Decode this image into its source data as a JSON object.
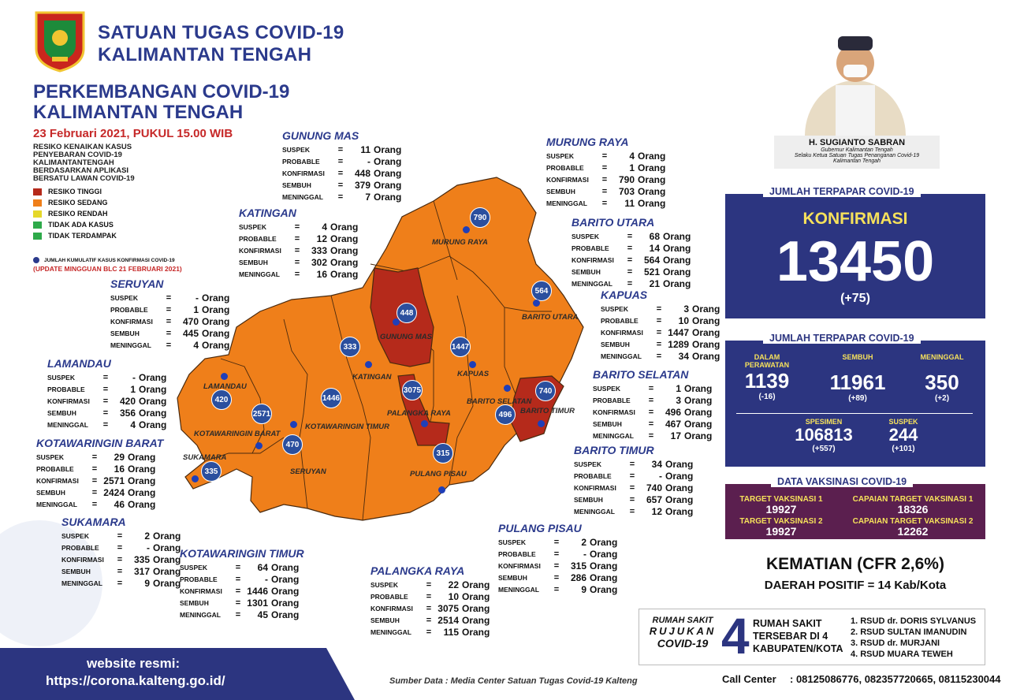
{
  "header": {
    "org_line1": "SATUAN TUGAS COVID-19",
    "org_line2": "KALIMANTAN TENGAH",
    "title_line1": "PERKEMBANGAN COVID-19",
    "title_line2": "KALIMANTAN TENGAH",
    "date": "23 Februari 2021, PUKUL 15.00 WIB"
  },
  "legend": {
    "heading": [
      "RESIKO KENAIKAN KASUS",
      "PENYEBARAN COVID-19",
      "KALIMANTANTENGAH",
      "BERDASARKAN APLIKASI",
      "BERSATU LAWAN COVID-19"
    ],
    "items": [
      {
        "label": "RESIKO TINGGI",
        "color": "#b52a1b"
      },
      {
        "label": "RESIKO SEDANG",
        "color": "#ef7f1a"
      },
      {
        "label": "RESIKO RENDAH",
        "color": "#e5d82a"
      },
      {
        "label": "TIDAK ADA KASUS",
        "color": "#2eaa4a"
      },
      {
        "label": "TIDAK TERDAMPAK",
        "color": "#2eaa4a"
      }
    ],
    "dot_note": "JUMLAH KUMULATIF KASUS KONFIRMASI COVID-19",
    "update_note": "(UPDATE MINGGUAN BLC 21 FEBRUARI 2021)"
  },
  "labels": {
    "suspek": "SUSPEK",
    "probable": "PROBABLE",
    "konfirmasi": "KONFIRMASI",
    "sembuh": "SEMBUH",
    "meninggal": "MENINGGAL",
    "eq": "=",
    "unit": "Orang"
  },
  "regions": [
    {
      "name": "GUNUNG MAS",
      "suspek": "11",
      "probable": "-",
      "konfirmasi": "448",
      "sembuh": "379",
      "meninggal": "7"
    },
    {
      "name": "MURUNG RAYA",
      "suspek": "4",
      "probable": "1",
      "konfirmasi": "790",
      "sembuh": "703",
      "meninggal": "11"
    },
    {
      "name": "KATINGAN",
      "suspek": "4",
      "probable": "12",
      "konfirmasi": "333",
      "sembuh": "302",
      "meninggal": "16"
    },
    {
      "name": "BARITO UTARA",
      "suspek": "68",
      "probable": "14",
      "konfirmasi": "564",
      "sembuh": "521",
      "meninggal": "21"
    },
    {
      "name": "SERUYAN",
      "suspek": "-",
      "probable": "1",
      "konfirmasi": "470",
      "sembuh": "445",
      "meninggal": "4"
    },
    {
      "name": "KAPUAS",
      "suspek": "3",
      "probable": "10",
      "konfirmasi": "1447",
      "sembuh": "1289",
      "meninggal": "34"
    },
    {
      "name": "LAMANDAU",
      "suspek": "-",
      "probable": "1",
      "konfirmasi": "420",
      "sembuh": "356",
      "meninggal": "4"
    },
    {
      "name": "BARITO SELATAN",
      "suspek": "1",
      "probable": "3",
      "konfirmasi": "496",
      "sembuh": "467",
      "meninggal": "17"
    },
    {
      "name": "KOTAWARINGIN BARAT",
      "suspek": "29",
      "probable": "16",
      "konfirmasi": "2571",
      "sembuh": "2424",
      "meninggal": "46"
    },
    {
      "name": "BARITO TIMUR",
      "suspek": "34",
      "probable": "-",
      "konfirmasi": "740",
      "sembuh": "657",
      "meninggal": "12"
    },
    {
      "name": "SUKAMARA",
      "suspek": "2",
      "probable": "-",
      "konfirmasi": "335",
      "sembuh": "317",
      "meninggal": "9"
    },
    {
      "name": "PULANG PISAU",
      "suspek": "2",
      "probable": "-",
      "konfirmasi": "315",
      "sembuh": "286",
      "meninggal": "9"
    },
    {
      "name": "KOTAWARINGIN TIMUR",
      "suspek": "64",
      "probable": "-",
      "konfirmasi": "1446",
      "sembuh": "1301",
      "meninggal": "45"
    },
    {
      "name": "PALANGKA RAYA",
      "suspek": "22",
      "probable": "10",
      "konfirmasi": "3075",
      "sembuh": "2514",
      "meninggal": "115"
    }
  ],
  "map_labels": [
    "MURUNG RAYA",
    "BARITO UTARA",
    "GUNUNG MAS",
    "KAPUAS",
    "KATINGAN",
    "LAMANDAU",
    "KOTAWARINGIN BARAT",
    "KOTAWARINGIN TIMUR",
    "PALANGKA RAYA",
    "BARITO SELATAN",
    "BARITO TIMUR",
    "SUKAMARA",
    "SERUYAN",
    "PULANG PISAU"
  ],
  "governor": {
    "name": "H. SUGIANTO SABRAN",
    "role1": "Gubernur Kalimantan Tengah",
    "role2": "Selaku Ketua Satuan Tugas Penanganan Covid-19",
    "role3": "Kalimantan Tengah"
  },
  "confirmed": {
    "title": "JUMLAH TERPAPAR COVID-19",
    "label": "KONFIRMASI",
    "value": "13450",
    "delta": "(+75)"
  },
  "exposure": {
    "title": "JUMLAH TERPAPAR COVID-19",
    "perawatan_label": "DALAM PERAWATAN",
    "perawatan": "1139",
    "perawatan_delta": "(-16)",
    "sembuh_label": "SEMBUH",
    "sembuh": "11961",
    "sembuh_delta": "(+89)",
    "meninggal_label": "MENINGGAL",
    "meninggal": "350",
    "meninggal_delta": "(+2)",
    "spesimen_label": "SPESIMEN",
    "spesimen": "106813",
    "spesimen_delta": "(+557)",
    "suspek_label": "SUSPEK",
    "suspek": "244",
    "suspek_delta": "(+101)"
  },
  "vaccine": {
    "title": "DATA VAKSINASI COVID-19",
    "t1_label": "TARGET VAKSINASI 1",
    "t1": "19927",
    "c1_label": "CAPAIAN TARGET VAKSINASI 1",
    "c1": "18326",
    "t2_label": "TARGET VAKSINASI 2",
    "t2": "19927",
    "c2_label": "CAPAIAN TARGET VAKSINASI 2",
    "c2": "12262"
  },
  "mortality": {
    "cfr": "KEMATIAN (CFR 2,6%)",
    "positive": "DAERAH POSITIF = 14 Kab/Kota"
  },
  "hospital": {
    "left1": "RUMAH SAKIT",
    "left2": "RUJUKAN",
    "left3": "COVID-19",
    "count": "4",
    "mid1": "RUMAH SAKIT",
    "mid2": "TERSEBAR DI 4",
    "mid3": "KABUPATEN/KOTA",
    "list": [
      "1. RSUD dr. DORIS SYLVANUS",
      "2. RSUD SULTAN IMANUDIN",
      "3. RSUD dr. MURJANI",
      "4. RSUD MUARA TEWEH"
    ]
  },
  "call_center": {
    "label": "Call Center",
    "numbers": ": 08125086776, 082357720665, 08115230044"
  },
  "website": {
    "label": "website resmi:",
    "url": "https://corona.kalteng.go.id/"
  },
  "source": "Sumber Data : Media Center Satuan Tugas Covid-19 Kalteng"
}
